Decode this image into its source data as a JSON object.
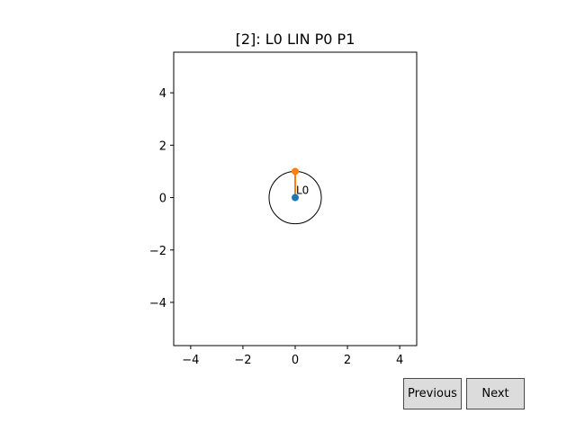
{
  "figure": {
    "title": "[2]: L0 LIN P0 P1"
  },
  "chart_data": {
    "type": "scatter",
    "title": "[2]: L0 LIN P0 P1",
    "xlim": [
      -4.65,
      4.65
    ],
    "ylim": [
      -5.65,
      5.55
    ],
    "x_ticks": [
      -4,
      -2,
      0,
      2,
      4
    ],
    "y_ticks": [
      -4,
      -2,
      0,
      2,
      4
    ],
    "tick_labels_x": [
      "−4",
      "−2",
      "0",
      "2",
      "4"
    ],
    "tick_labels_y": [
      "−4",
      "−2",
      "0",
      "2",
      "4"
    ],
    "grid": false,
    "series": [
      {
        "points": [
          [
            0,
            0
          ]
        ],
        "color": "#1f77b4"
      },
      {
        "points": [
          [
            0,
            1
          ]
        ],
        "color": "#ff7f0e"
      }
    ],
    "link": {
      "from": [
        0,
        0
      ],
      "to": [
        0,
        1
      ],
      "color": "#ff7f0e"
    },
    "circle": {
      "center": [
        0,
        0
      ],
      "radius": 1,
      "color": "#000000"
    },
    "annotations": [
      {
        "text": "L0",
        "x": 0,
        "y": 0
      }
    ]
  },
  "buttons": {
    "previous_label": "Previous",
    "next_label": "Next"
  }
}
